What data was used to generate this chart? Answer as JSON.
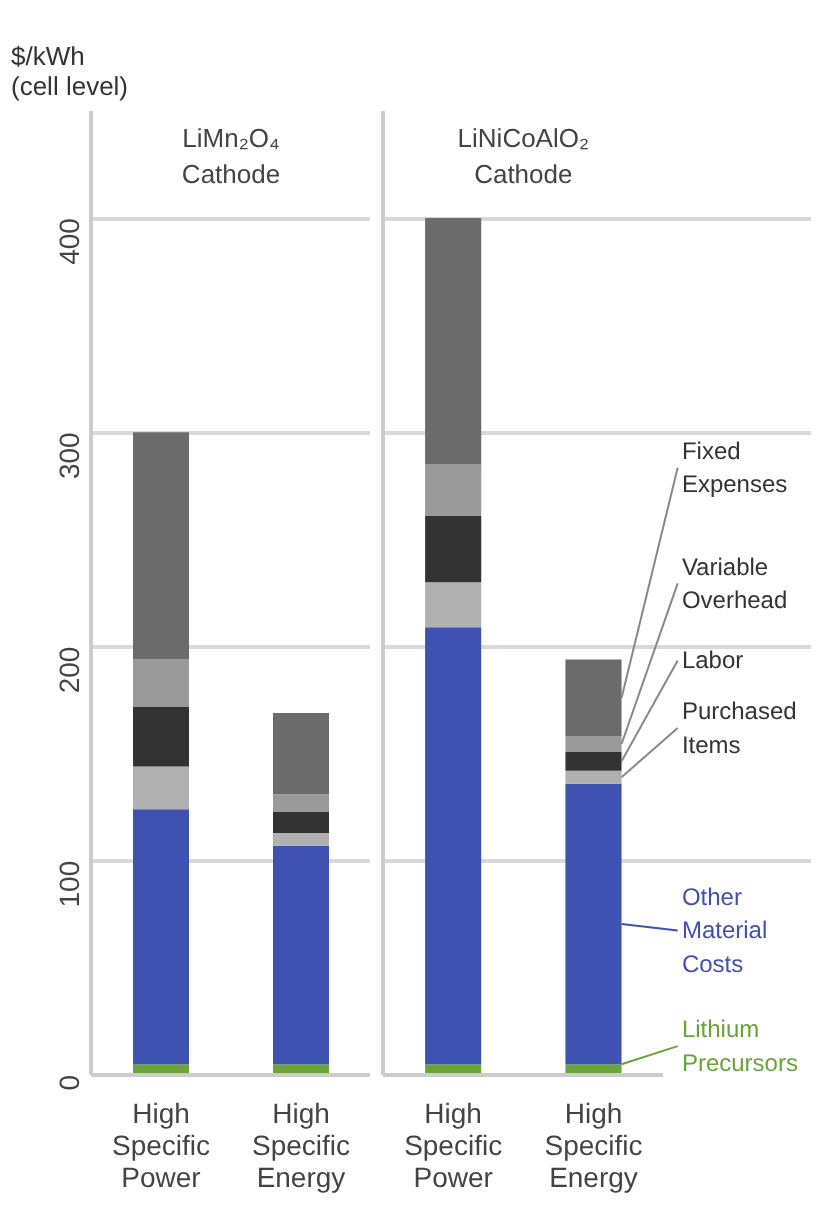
{
  "chart_data": [
    {
      "type": "bar",
      "stacked": true,
      "title": "LiMn₂O₄ Cathode",
      "ylabel": "$/kWh (cell level)",
      "categories": [
        "High Specific Power",
        "High Specific Energy"
      ],
      "series": [
        {
          "color": "#6aa339",
          "values": [
            5,
            5
          ]
        },
        {
          "color": "#3f51b1",
          "values": [
            119,
            102
          ]
        },
        {
          "color": "#b0b0b0",
          "values": [
            20,
            6
          ]
        },
        {
          "color": "#333333",
          "values": [
            28,
            10
          ]
        },
        {
          "color": "#9a9a9a",
          "values": [
            22,
            8
          ]
        },
        {
          "color": "#6b6b6b",
          "values": [
            106,
            38
          ]
        }
      ],
      "ylim": [
        0,
        450
      ],
      "yticks": [
        0,
        100,
        200,
        300,
        400
      ],
      "grid": "y"
    },
    {
      "type": "bar",
      "stacked": true,
      "title": "LiNiCoAlO₂ Cathode",
      "categories": [
        "High Specific Power",
        "High Specific Energy"
      ],
      "series": [
        {
          "name": "Lithium Precursors",
          "color": "#6aa339",
          "values": [
            5,
            5
          ]
        },
        {
          "name": "Other Material Costs",
          "color": "#3f51b1",
          "values": [
            204,
            131
          ]
        },
        {
          "name": "Purchased Items",
          "color": "#b0b0b0",
          "values": [
            21,
            6
          ]
        },
        {
          "name": "Labor",
          "color": "#333333",
          "values": [
            31,
            9
          ]
        },
        {
          "name": "Variable Overhead",
          "color": "#9a9a9a",
          "values": [
            24,
            7
          ]
        },
        {
          "name": "Fixed Expenses",
          "color": "#6b6b6b",
          "values": [
            115,
            36
          ]
        }
      ],
      "ylim": [
        0,
        450
      ],
      "yticks": [
        0,
        100,
        200,
        300,
        400
      ],
      "grid": "y",
      "tick_labels": "x",
      "legend": "right"
    }
  ]
}
